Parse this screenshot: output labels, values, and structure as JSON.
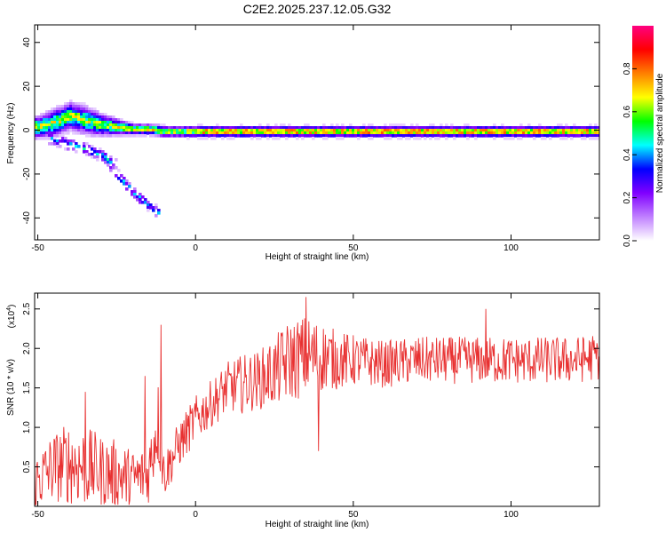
{
  "chart_data": [
    {
      "type": "heatmap",
      "title": "C2E2.2025.237.12.05.G32",
      "xlabel": "Height of straight line (km)",
      "ylabel": "Frequency (Hz)",
      "xlim": [
        -51,
        128
      ],
      "ylim": [
        -50,
        48
      ],
      "xticks": [
        -50,
        0,
        50,
        100
      ],
      "xtick_labels": [
        "-50",
        "0",
        "50",
        "100"
      ],
      "yticks": [
        -40,
        -20,
        0,
        20,
        40
      ],
      "ytick_labels": [
        "-40",
        "-20",
        "0",
        "20",
        "40"
      ],
      "colorbar": {
        "label": "Normalized spectral amplitude",
        "range": [
          0,
          1
        ],
        "ticks": [
          0,
          0.2,
          0.4,
          0.6,
          0.8
        ],
        "tick_labels": [
          "0.0",
          "0.2",
          "0.4",
          "0.6",
          "0.8"
        ],
        "colors": [
          "#ffffff",
          "#c080ff",
          "#8000ff",
          "#0000ff",
          "#00ffff",
          "#00ff00",
          "#ffff00",
          "#ff8000",
          "#ff0000",
          "#ff0080"
        ]
      },
      "band": {
        "description_x": [
          -50,
          -45,
          -40,
          -35,
          -30,
          -25,
          -20,
          -15,
          -10,
          0,
          20,
          50,
          80,
          110,
          128
        ],
        "center_freq": [
          2,
          4,
          7,
          5,
          3,
          2,
          1,
          1,
          0,
          0,
          0,
          0,
          0,
          0,
          0
        ],
        "half_width": [
          4,
          5,
          5,
          5,
          4,
          3,
          2,
          2,
          2,
          2,
          2,
          2,
          2,
          2,
          2
        ]
      },
      "branches": [
        {
          "name": "descending-branch-1",
          "x": [
            -47,
            -40,
            -35,
            -30,
            -25
          ],
          "y": [
            -3,
            -6,
            -8,
            -11,
            -16
          ]
        },
        {
          "name": "descending-branch-2",
          "x": [
            -30,
            -25,
            -20,
            -15,
            -12
          ],
          "y": [
            -10,
            -20,
            -28,
            -34,
            -37
          ]
        }
      ]
    },
    {
      "type": "line",
      "xlabel": "Height of straight line (km)",
      "ylabel": "SNR (10 * v/v)",
      "y_multiplier": "(x10",
      "y_multiplier_exp": "4",
      "y_multiplier_close": ")",
      "xlim": [
        -51,
        128
      ],
      "ylim": [
        0,
        2.7
      ],
      "xticks": [
        -50,
        0,
        50,
        100
      ],
      "xtick_labels": [
        "-50",
        "0",
        "50",
        "100"
      ],
      "yticks": [
        0.5,
        1.0,
        1.5,
        2.0,
        2.5
      ],
      "ytick_labels": [
        "0.5",
        "1.0",
        "1.5",
        "2.0",
        "2.5"
      ],
      "line_color": "#e83030",
      "series": [
        {
          "name": "SNR",
          "x": [
            -51,
            -45,
            -40,
            -35,
            -30,
            -25,
            -20,
            -15,
            -12,
            -10,
            -5,
            0,
            5,
            10,
            15,
            20,
            25,
            30,
            35,
            40,
            45,
            50,
            60,
            70,
            80,
            90,
            100,
            110,
            120,
            128
          ],
          "y": [
            0.3,
            0.5,
            0.55,
            0.5,
            0.45,
            0.4,
            0.35,
            0.4,
            1.1,
            0.4,
            0.8,
            1.1,
            1.3,
            1.5,
            1.55,
            1.6,
            1.7,
            1.85,
            1.9,
            1.9,
            1.85,
            1.85,
            1.8,
            1.85,
            1.85,
            1.85,
            1.85,
            1.85,
            1.85,
            1.9
          ],
          "noise": [
            0.25,
            0.3,
            0.35,
            0.35,
            0.3,
            0.3,
            0.25,
            0.25,
            0.4,
            0.2,
            0.2,
            0.2,
            0.2,
            0.22,
            0.25,
            0.25,
            0.3,
            0.35,
            0.35,
            0.3,
            0.25,
            0.22,
            0.2,
            0.2,
            0.2,
            0.2,
            0.2,
            0.2,
            0.2,
            0.2
          ],
          "peaks": [
            {
              "x": -35,
              "y": 1.45
            },
            {
              "x": -16,
              "y": 1.65
            },
            {
              "x": -11,
              "y": 2.3
            },
            {
              "x": 35,
              "y": 2.65
            },
            {
              "x": 39,
              "y": 0.7
            },
            {
              "x": 92,
              "y": 2.5
            }
          ]
        }
      ]
    }
  ]
}
